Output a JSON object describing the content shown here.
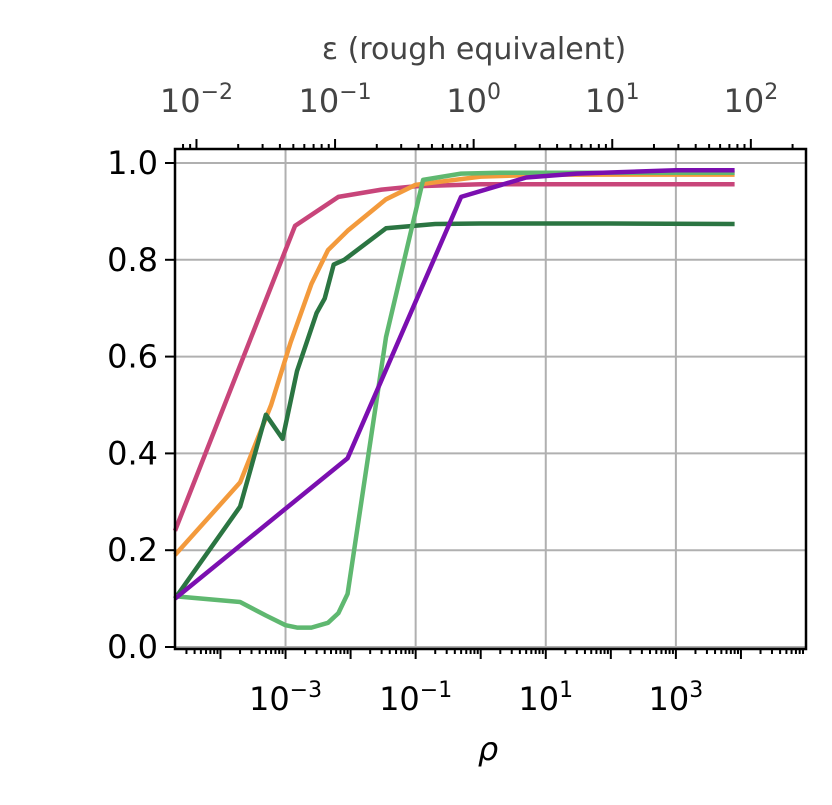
{
  "chart_data": {
    "type": "line",
    "xlabel": "ρ",
    "x_scale": "log",
    "xlim": [
      2e-05,
      100000
    ],
    "ylim": [
      0.0,
      1.0
    ],
    "grid": true,
    "x_tick_values": [
      0.001,
      0.1,
      10,
      1000
    ],
    "x_tick_labels": [
      {
        "base": "10",
        "exp": "−3"
      },
      {
        "base": "10",
        "exp": "−1"
      },
      {
        "base": "10",
        "exp": "1"
      },
      {
        "base": "10",
        "exp": "3"
      }
    ],
    "y_tick_values": [
      0.0,
      0.2,
      0.4,
      0.6,
      0.8,
      1.0
    ],
    "y_tick_labels": [
      "0.0",
      "0.2",
      "0.4",
      "0.6",
      "0.8",
      "1.0"
    ],
    "top_axis": {
      "label": "ε (rough equivalent)",
      "scale": "log",
      "xlim": [
        0.007,
        250
      ],
      "tick_values": [
        0.01,
        0.1,
        1,
        10,
        100
      ],
      "tick_labels": [
        {
          "base": "10",
          "exp": "−2"
        },
        {
          "base": "10",
          "exp": "−1"
        },
        {
          "base": "10",
          "exp": "0"
        },
        {
          "base": "10",
          "exp": "1"
        },
        {
          "base": "10",
          "exp": "2"
        }
      ]
    },
    "series": [
      {
        "color": "#c8457a",
        "x": [
          2e-05,
          0.0014,
          0.0065,
          0.03,
          0.1,
          1,
          10,
          100,
          1000,
          8000
        ],
        "y": [
          0.24,
          0.87,
          0.93,
          0.945,
          0.952,
          0.956,
          0.956,
          0.956,
          0.956,
          0.956
        ]
      },
      {
        "color": "#f39a3c",
        "x": [
          2e-05,
          0.0002,
          0.0006,
          0.0012,
          0.0025,
          0.0045,
          0.009,
          0.035,
          0.1,
          1,
          10,
          100,
          8000
        ],
        "y": [
          0.19,
          0.34,
          0.5,
          0.63,
          0.75,
          0.82,
          0.86,
          0.925,
          0.955,
          0.972,
          0.976,
          0.976,
          0.976
        ]
      },
      {
        "color": "#2b7542",
        "x": [
          2e-05,
          0.0002,
          0.0005,
          0.0009,
          0.0015,
          0.003,
          0.004,
          0.0055,
          0.008,
          0.035,
          0.2,
          1,
          100,
          8000
        ],
        "y": [
          0.1,
          0.29,
          0.48,
          0.43,
          0.57,
          0.69,
          0.72,
          0.79,
          0.8,
          0.865,
          0.874,
          0.875,
          0.875,
          0.874
        ]
      },
      {
        "color": "#5fb870",
        "x": [
          2e-05,
          0.0002,
          0.0005,
          0.001,
          0.0015,
          0.0025,
          0.0045,
          0.0065,
          0.009,
          0.035,
          0.13,
          0.5,
          2,
          100,
          8000
        ],
        "y": [
          0.105,
          0.093,
          0.065,
          0.045,
          0.04,
          0.04,
          0.05,
          0.07,
          0.11,
          0.64,
          0.965,
          0.978,
          0.98,
          0.98,
          0.98
        ]
      },
      {
        "color": "#7b0fb0",
        "x": [
          2e-05,
          0.009,
          0.5,
          5,
          30,
          1000,
          8000
        ],
        "y": [
          0.1,
          0.39,
          0.93,
          0.97,
          0.978,
          0.985,
          0.985
        ]
      }
    ]
  }
}
